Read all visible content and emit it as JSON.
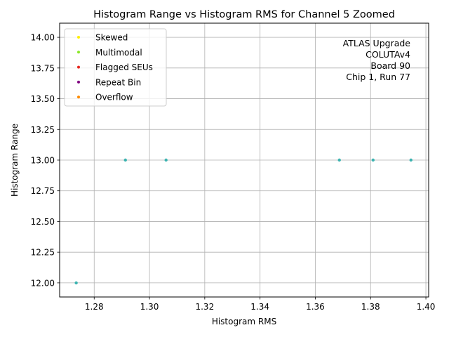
{
  "chart_data": {
    "type": "scatter",
    "title": "Histogram Range vs Histogram RMS for Channel 5 Zoomed",
    "xlabel": "Histogram RMS",
    "ylabel": "Histogram Range",
    "xlim": [
      1.2675,
      1.401
    ],
    "ylim": [
      11.885,
      14.115
    ],
    "xticks": [
      1.28,
      1.3,
      1.32,
      1.34,
      1.36,
      1.38,
      1.4
    ],
    "yticks": [
      12.0,
      12.25,
      12.5,
      12.75,
      13.0,
      13.25,
      13.5,
      13.75,
      14.0
    ],
    "xtick_labels": [
      "1.28",
      "1.30",
      "1.32",
      "1.34",
      "1.36",
      "1.38",
      "1.40"
    ],
    "ytick_labels": [
      "12.00",
      "12.25",
      "12.50",
      "12.75",
      "13.00",
      "13.25",
      "13.50",
      "13.75",
      "14.00"
    ],
    "grid": true,
    "legend_position": "top-left",
    "series": [
      {
        "name": "Skewed",
        "color": "#ffee00",
        "x": [],
        "y": []
      },
      {
        "name": "Multimodal",
        "color": "#8ce82a",
        "x": [],
        "y": []
      },
      {
        "name": "Flagged SEUs",
        "color": "#e8261e",
        "x": [],
        "y": []
      },
      {
        "name": "Repeat Bin",
        "color": "#800080",
        "x": [],
        "y": []
      },
      {
        "name": "Overflow",
        "color": "#ff8c00",
        "x": [],
        "y": []
      }
    ],
    "points": {
      "color": "#3bb3b0",
      "x": [
        1.2735,
        1.2913,
        1.306,
        1.3687,
        1.3809,
        1.3946
      ],
      "y": [
        12.0,
        13.0,
        13.0,
        13.0,
        13.0,
        13.0
      ]
    },
    "annotation": [
      "ATLAS Upgrade",
      "COLUTAv4",
      "Board 90",
      "Chip 1, Run 77"
    ]
  }
}
